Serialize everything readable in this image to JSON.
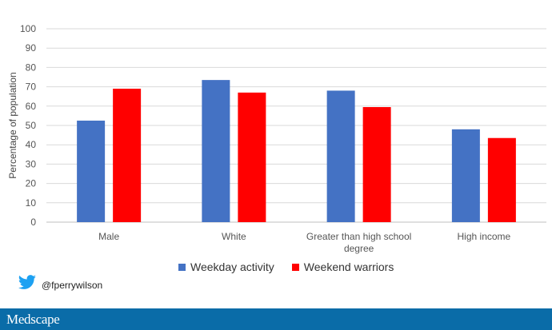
{
  "chart_data": {
    "type": "bar",
    "categories": [
      "Male",
      "White",
      "Greater than high school degree",
      "High income"
    ],
    "series": [
      {
        "name": "Weekday activity",
        "values": [
          52.5,
          73.5,
          68,
          48
        ],
        "color": "#4472C4"
      },
      {
        "name": "Weekend warriors",
        "values": [
          69,
          67,
          59.5,
          43.5
        ],
        "color": "#FF0000"
      }
    ],
    "ylabel": "Percentage of population",
    "xlabel": "",
    "ylim": [
      0,
      100
    ],
    "yticks": [
      0,
      10,
      20,
      30,
      40,
      50,
      60,
      70,
      80,
      90,
      100
    ],
    "grid": true,
    "legend_position": "bottom"
  },
  "social": {
    "handle": "@fperrywilson",
    "icon": "twitter-bird-icon"
  },
  "footer": {
    "brand": "Medscape",
    "color": "#0A6CA8"
  }
}
